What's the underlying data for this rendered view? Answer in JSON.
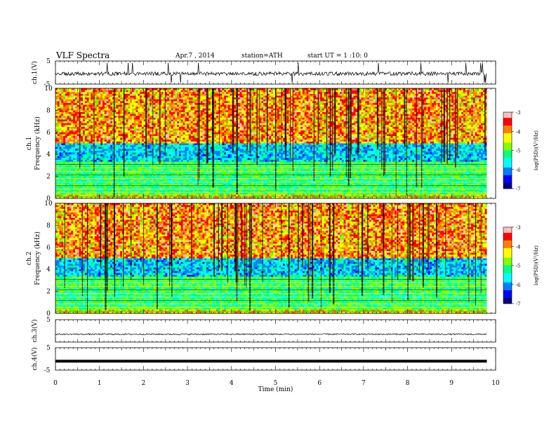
{
  "header": {
    "title": "VLF  Spectra",
    "date": "Apr.7  , 2014",
    "station": "station=ATH",
    "start_ut": "start  UT  =   1 :10: 0"
  },
  "chart_data": [
    {
      "type": "line",
      "panel": "ch1-waveform",
      "ylabel": "ch.1(V)",
      "ylim": [
        -5,
        5
      ],
      "yticks": [
        "5",
        "-5"
      ],
      "xlim": [
        0,
        10
      ],
      "note": "noisy waveform trace around 0 V with spikes"
    },
    {
      "type": "heatmap",
      "panel": "ch1-spectrogram",
      "ylabel": "ch.1\nFrequency (kHz)",
      "ylim": [
        0,
        10
      ],
      "yticks": [
        "0",
        "2",
        "4",
        "6",
        "8",
        "10"
      ],
      "xlim": [
        0,
        9.8
      ],
      "colorbar": {
        "label": "log(PSD)(V²/Hz)",
        "ticks": [
          "-3",
          "-4",
          "-5",
          "-6",
          "-7"
        ],
        "range": [
          -7,
          -3
        ]
      }
    },
    {
      "type": "heatmap",
      "panel": "ch2-spectrogram",
      "ylabel": "ch.2\nFrequency (kHz)",
      "ylim": [
        0,
        10
      ],
      "yticks": [
        "0",
        "2",
        "4",
        "6",
        "8",
        "10"
      ],
      "xlim": [
        0,
        9.8
      ],
      "colorbar": {
        "label": "log(PSD)(V²/Hz)",
        "ticks": [
          "-3",
          "-4",
          "-5",
          "-6",
          "-7"
        ],
        "range": [
          -7,
          -3
        ]
      }
    },
    {
      "type": "line",
      "panel": "ch3-waveform",
      "ylabel": "ch.3(V)",
      "ylim": [
        -5,
        5
      ],
      "yticks": [
        "5"
      ],
      "xlim": [
        0,
        10
      ],
      "note": "low-amplitude waveform near -1 V"
    },
    {
      "type": "line",
      "panel": "ch4-waveform",
      "ylabel": "ch.4(V)",
      "ylim": [
        -5,
        5
      ],
      "yticks": [
        "5",
        "-5"
      ],
      "xlim": [
        0,
        10
      ],
      "note": "flat thick line near -1 V"
    }
  ],
  "x_axis": {
    "label": "Time  (min)",
    "ticks": [
      "0",
      "1",
      "2",
      "3",
      "4",
      "5",
      "6",
      "7",
      "8",
      "9",
      "10"
    ],
    "range": [
      0,
      10
    ]
  },
  "colors": {
    "colormap": [
      "#000080",
      "#0000ff",
      "#0080ff",
      "#00ffff",
      "#00ff80",
      "#80ff00",
      "#ffff00",
      "#ff8000",
      "#ff0000",
      "#ffc0c0"
    ]
  }
}
